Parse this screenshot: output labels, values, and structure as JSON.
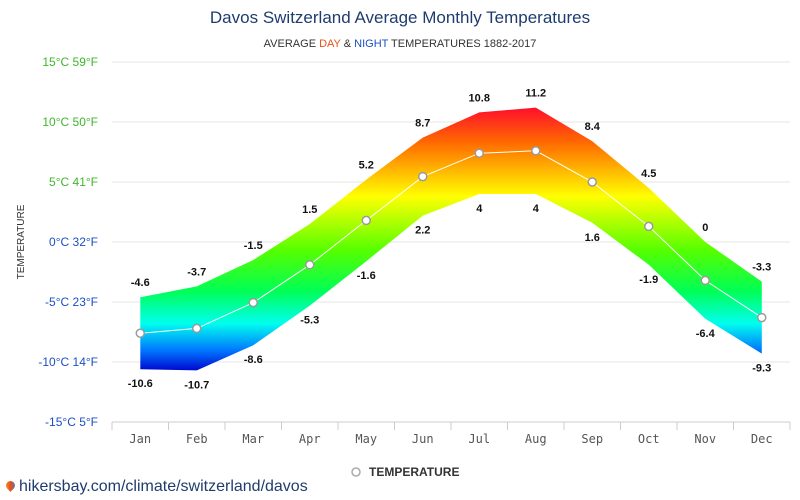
{
  "chart_data": {
    "type": "area",
    "title": "Davos Switzerland Average Monthly Temperatures",
    "subtitle": {
      "prefix": "AVERAGE ",
      "day": "DAY",
      "mid": " & ",
      "night": "NIGHT",
      "suffix": " TEMPERATURES 1882-2017"
    },
    "ylabel": "TEMPERATURE",
    "ylim": [
      -15,
      15
    ],
    "yticks": [
      {
        "value": 15,
        "label": "15°C 59°F"
      },
      {
        "value": 10,
        "label": "10°C 50°F"
      },
      {
        "value": 5,
        "label": "5°C 41°F"
      },
      {
        "value": 0,
        "label": "0°C 32°F"
      },
      {
        "value": -5,
        "label": "-5°C 23°F"
      },
      {
        "value": -10,
        "label": "-10°C 14°F"
      },
      {
        "value": -15,
        "label": "-15°C 5°F"
      }
    ],
    "categories": [
      "Jan",
      "Feb",
      "Mar",
      "Apr",
      "May",
      "Jun",
      "Jul",
      "Aug",
      "Sep",
      "Oct",
      "Nov",
      "Dec"
    ],
    "day": [
      -4.6,
      -3.7,
      -1.5,
      1.5,
      5.2,
      8.7,
      10.8,
      11.2,
      8.4,
      4.5,
      0,
      -3.3
    ],
    "night": [
      -10.6,
      -10.7,
      -8.6,
      -5.3,
      -1.6,
      2.2,
      4,
      4,
      1.6,
      -1.9,
      -6.4,
      -9.3
    ],
    "series": [
      {
        "name": "TEMPERATURE",
        "values": [
          -7.6,
          -7.2,
          -5.05,
          -1.9,
          1.8,
          5.45,
          7.4,
          7.6,
          5.0,
          1.3,
          -3.2,
          -6.3
        ]
      }
    ],
    "grid": true,
    "legend": "bottom-center",
    "colors": {
      "title": "#1f3c6e",
      "day": "#e8521b",
      "night": "#1c4fc4",
      "gradient_top": "#ff1a1a",
      "gradient_mid": "#ffff00",
      "gradient_low": "#00ff44",
      "gradient_bottom": "#0011dd"
    }
  },
  "source": "hikersbay.com/climate/switzerland/davos"
}
